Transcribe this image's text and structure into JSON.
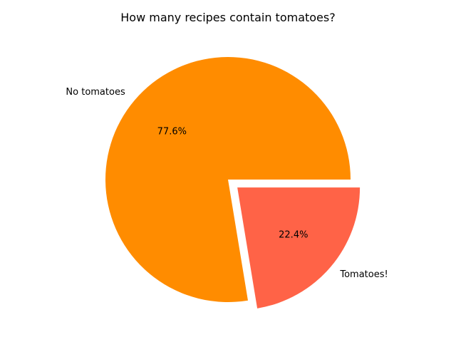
{
  "chart_data": {
    "type": "pie",
    "title": "How many recipes contain tomatoes?",
    "slices": [
      {
        "label": "No tomatoes",
        "value": 77.6,
        "pct_label": "77.6%",
        "color": "#ff8c00",
        "explode": false
      },
      {
        "label": "Tomatoes!",
        "value": 22.4,
        "pct_label": "22.4%",
        "color": "#ff6347",
        "explode": true
      }
    ],
    "start_angle": "0° (3 o'clock), counter-clockwise",
    "legend": "none"
  }
}
